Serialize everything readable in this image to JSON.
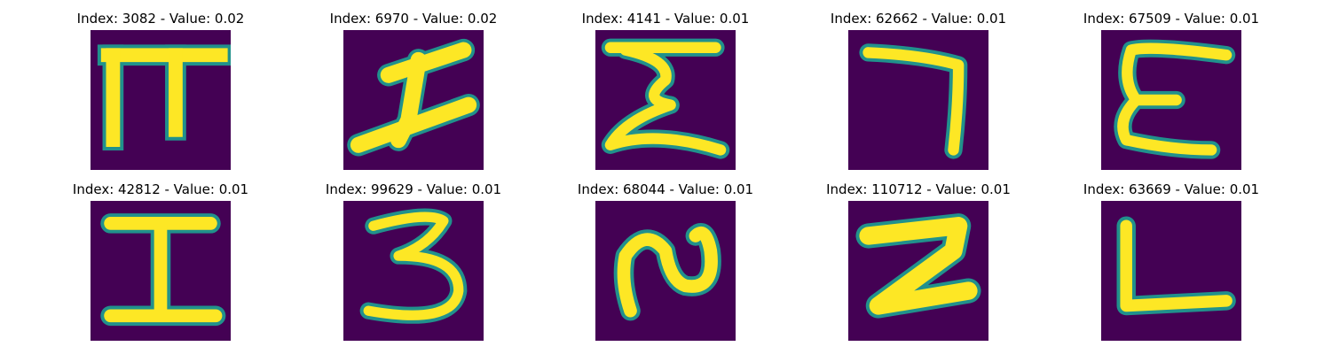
{
  "colors": {
    "background": "#440154",
    "glyph": "#fde725",
    "edge": "#22a884",
    "edge_dark": "#2a788e"
  },
  "panels": [
    {
      "title": "Index: 3082 - Value: 0.02",
      "glyph": "pi-glyph"
    },
    {
      "title": "Index: 6970 - Value: 0.02",
      "glyph": "cross-glyph"
    },
    {
      "title": "Index: 4141 - Value: 0.01",
      "glyph": "sigma-glyph"
    },
    {
      "title": "Index: 62662 - Value: 0.01",
      "glyph": "seven-glyph"
    },
    {
      "title": "Index: 67509 - Value: 0.01",
      "glyph": "e-glyph"
    },
    {
      "title": "Index: 42812 - Value: 0.01",
      "glyph": "i-glyph"
    },
    {
      "title": "Index: 99629 - Value: 0.01",
      "glyph": "three-glyph"
    },
    {
      "title": "Index: 68044 - Value: 0.01",
      "glyph": "squiggle-glyph"
    },
    {
      "title": "Index: 110712 - Value: 0.01",
      "glyph": "z-glyph"
    },
    {
      "title": "Index: 63669 - Value: 0.01",
      "glyph": "l-glyph"
    }
  ]
}
